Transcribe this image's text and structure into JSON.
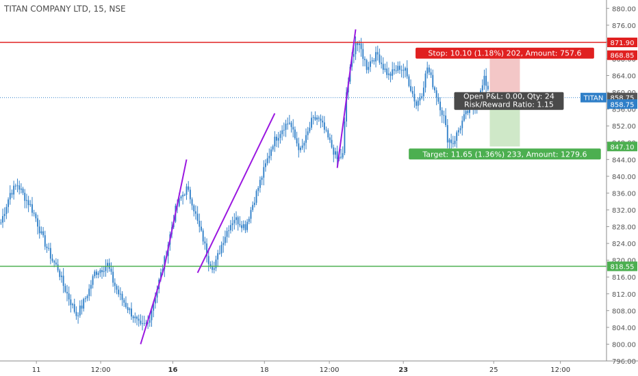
{
  "header": {
    "title": "TITAN COMPANY LTD, 15, NSE"
  },
  "colors": {
    "candle": "#2f7fc8",
    "trend": "#9a17e0",
    "stop": "#e02020",
    "target": "#4caf50",
    "price": "#2f7fc8",
    "stop_zone": "#f3c7c7",
    "target_zone": "#cfe8c8",
    "tooltip": "#4a4a4a",
    "axis_text": "#555555",
    "grid": "#e8e8e8"
  },
  "chart_data": {
    "type": "candlestick",
    "symbol": "TITAN",
    "interval": "15",
    "exchange": "NSE",
    "y_range": [
      796,
      882
    ],
    "y_ticks": [
      "796.00",
      "800.00",
      "804.00",
      "808.00",
      "812.00",
      "816.00",
      "820.00",
      "824.00",
      "828.00",
      "832.00",
      "836.00",
      "840.00",
      "844.00",
      "848.00",
      "852.00",
      "856.00",
      "860.00",
      "864.00",
      "868.00",
      "872.00",
      "876.00",
      "880.00"
    ],
    "x_ticks": [
      {
        "label": "11",
        "pos": 0.06,
        "bold": false
      },
      {
        "label": "12:00",
        "pos": 0.166,
        "bold": false
      },
      {
        "label": "16",
        "pos": 0.285,
        "bold": true
      },
      {
        "label": "18",
        "pos": 0.436,
        "bold": false
      },
      {
        "label": "12:00",
        "pos": 0.543,
        "bold": false
      },
      {
        "label": "23",
        "pos": 0.665,
        "bold": true
      },
      {
        "label": "25",
        "pos": 0.814,
        "bold": false
      },
      {
        "label": "12:00",
        "pos": 0.924,
        "bold": false
      }
    ],
    "anchors": [
      [
        0,
        829
      ],
      [
        5,
        836
      ],
      [
        9,
        838
      ],
      [
        13,
        835
      ],
      [
        16,
        833
      ],
      [
        19,
        830
      ],
      [
        22,
        826
      ],
      [
        25,
        823
      ],
      [
        28,
        820
      ],
      [
        31,
        818
      ],
      [
        34,
        814
      ],
      [
        38,
        810
      ],
      [
        41,
        807
      ],
      [
        44,
        809
      ],
      [
        48,
        813
      ],
      [
        51,
        817
      ],
      [
        55,
        818
      ],
      [
        58,
        819
      ],
      [
        61,
        815
      ],
      [
        64,
        812
      ],
      [
        67,
        810
      ],
      [
        70,
        808
      ],
      [
        73,
        806
      ],
      [
        76,
        804
      ],
      [
        80,
        805
      ],
      [
        83,
        810
      ],
      [
        86,
        815
      ],
      [
        89,
        820
      ],
      [
        92,
        826
      ],
      [
        95,
        832
      ],
      [
        98,
        835
      ],
      [
        101,
        837
      ],
      [
        104,
        834
      ],
      [
        107,
        829
      ],
      [
        110,
        825
      ],
      [
        113,
        820
      ],
      [
        116,
        818
      ],
      [
        118,
        821
      ],
      [
        121,
        825
      ],
      [
        124,
        828
      ],
      [
        127,
        830
      ],
      [
        130,
        829
      ],
      [
        133,
        828
      ],
      [
        136,
        832
      ],
      [
        139,
        836
      ],
      [
        142,
        840
      ],
      [
        145,
        844
      ],
      [
        148,
        848
      ],
      [
        151,
        850
      ],
      [
        154,
        852
      ],
      [
        157,
        853
      ],
      [
        160,
        849
      ],
      [
        163,
        846
      ],
      [
        166,
        849
      ],
      [
        169,
        853
      ],
      [
        172,
        854
      ],
      [
        175,
        852
      ],
      [
        178,
        849
      ],
      [
        181,
        846
      ],
      [
        183,
        844
      ],
      [
        186,
        845
      ],
      [
        188,
        860
      ],
      [
        191,
        868
      ],
      [
        193,
        872
      ],
      [
        196,
        870
      ],
      [
        199,
        866
      ],
      [
        202,
        868
      ],
      [
        205,
        869
      ],
      [
        208,
        866
      ],
      [
        211,
        864
      ],
      [
        214,
        865
      ],
      [
        217,
        866
      ],
      [
        220,
        865
      ],
      [
        223,
        861
      ],
      [
        226,
        857
      ],
      [
        229,
        860
      ],
      [
        232,
        866
      ],
      [
        235,
        862
      ],
      [
        238,
        858
      ],
      [
        241,
        854
      ],
      [
        243,
        849
      ],
      [
        246,
        848
      ],
      [
        249,
        851
      ],
      [
        252,
        854
      ],
      [
        255,
        856
      ],
      [
        258,
        857
      ],
      [
        261,
        860
      ],
      [
        263,
        863
      ],
      [
        265,
        861
      ]
    ],
    "trendlines": [
      {
        "from": [
          76,
          800
        ],
        "to": [
          89,
          818.5
        ]
      },
      {
        "from": [
          89,
          818.5
        ],
        "to": [
          101,
          844
        ]
      },
      {
        "from": [
          107,
          817
        ],
        "to": [
          149,
          855
        ]
      },
      {
        "from": [
          183,
          842
        ],
        "to": [
          193,
          875
        ]
      }
    ],
    "horizontal_levels": [
      {
        "name": "stop",
        "price": 871.9,
        "label": "871.90"
      },
      {
        "name": "target",
        "price": 818.55,
        "label": "818.55"
      }
    ],
    "position": {
      "entry_price": 858.75,
      "stop_price": 868.85,
      "target_price": 847.1,
      "start_index": 263,
      "end_index": 280,
      "stop_label": "Stop: 10.10 (1.18%) 202, Amount: 757.6",
      "target_label": "Target: 11.65 (1.36%) 233, Amount: 1279.6",
      "pnl_label": "Open P&L: 0.00, Qty: 24",
      "rr_label": "Risk/Reward Ratio: 1.15"
    },
    "price_badges": [
      {
        "text": "871.90",
        "price": 871.9,
        "color": "#e02020"
      },
      {
        "text": "868.85",
        "price": 868.85,
        "color": "#e02020"
      },
      {
        "text": "858.75",
        "price": 858.75,
        "color": "#555555"
      },
      {
        "text": "858.75",
        "price": 857.2,
        "color": "#2f7fc8"
      },
      {
        "text": "847.10",
        "price": 847.1,
        "color": "#4caf50"
      },
      {
        "text": "818.55",
        "price": 818.55,
        "color": "#4caf50"
      }
    ],
    "current_price_line": 858.75,
    "symbol_badge": "TITAN",
    "total_bars": 330
  }
}
